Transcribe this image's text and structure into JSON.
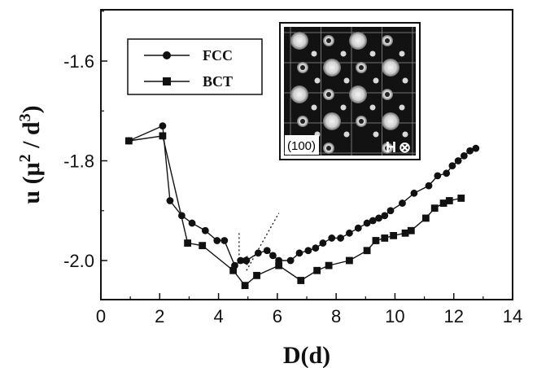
{
  "chart_data": {
    "type": "line",
    "xlabel": "D(d)",
    "ylabel_parts": [
      "u (μ",
      "2",
      " / d",
      "3",
      ")"
    ],
    "xlim": [
      0,
      14
    ],
    "ylim": [
      -2.1,
      -1.5
    ],
    "x_ticks": [
      0,
      2,
      4,
      6,
      8,
      10,
      12,
      14
    ],
    "y_ticks": [
      -1.6,
      -1.8,
      -2.0
    ],
    "y_tick_labels": [
      "-1.6",
      "-1.8",
      "-2.0"
    ],
    "grid": false,
    "legend_position": "top-left",
    "series": [
      {
        "name": "FCC",
        "marker": "circle",
        "x": [
          0.95,
          2.1,
          2.35,
          2.75,
          3.1,
          3.55,
          3.95,
          4.2,
          4.55,
          4.75,
          4.95,
          5.35,
          5.65,
          5.85,
          6.05,
          6.45,
          6.75,
          7.05,
          7.3,
          7.55,
          7.85,
          8.15,
          8.45,
          8.75,
          9.05,
          9.25,
          9.45,
          9.65,
          9.85,
          10.25,
          10.65,
          11.15,
          11.45,
          11.75,
          11.95,
          12.15,
          12.35,
          12.55,
          12.75
        ],
        "y": [
          -1.76,
          -1.73,
          -1.88,
          -1.91,
          -1.925,
          -1.94,
          -1.96,
          -1.96,
          -2.01,
          -2.0,
          -2.0,
          -1.985,
          -1.98,
          -1.99,
          -2.0,
          -2.0,
          -1.985,
          -1.98,
          -1.975,
          -1.965,
          -1.955,
          -1.955,
          -1.945,
          -1.935,
          -1.925,
          -1.92,
          -1.915,
          -1.91,
          -1.9,
          -1.885,
          -1.865,
          -1.85,
          -1.83,
          -1.825,
          -1.81,
          -1.8,
          -1.79,
          -1.78,
          -1.775
        ]
      },
      {
        "name": "BCT",
        "marker": "square",
        "x": [
          0.95,
          2.1,
          2.95,
          3.45,
          4.5,
          4.9,
          5.3,
          6.05,
          6.8,
          7.35,
          7.75,
          8.45,
          9.05,
          9.35,
          9.65,
          9.95,
          10.35,
          10.55,
          11.05,
          11.35,
          11.65,
          11.85,
          12.25
        ],
        "y": [
          -1.76,
          -1.75,
          -1.965,
          -1.97,
          -2.02,
          -2.05,
          -2.03,
          -2.01,
          -2.04,
          -2.02,
          -2.01,
          -2.0,
          -1.98,
          -1.96,
          -1.955,
          -1.95,
          -1.945,
          -1.94,
          -1.915,
          -1.895,
          -1.885,
          -1.88,
          -1.875
        ]
      }
    ],
    "annotations": [
      {
        "type": "dotted-arrow",
        "from": [
          4.7,
          -1.945
        ],
        "to": [
          4.7,
          -2.0
        ]
      },
      {
        "type": "dotted-line",
        "from": [
          4.95,
          -2.02
        ],
        "to": [
          6.05,
          -1.905
        ]
      }
    ],
    "inset": {
      "label": "(100)",
      "field_label": "H",
      "field_symbol": "⊗"
    }
  }
}
